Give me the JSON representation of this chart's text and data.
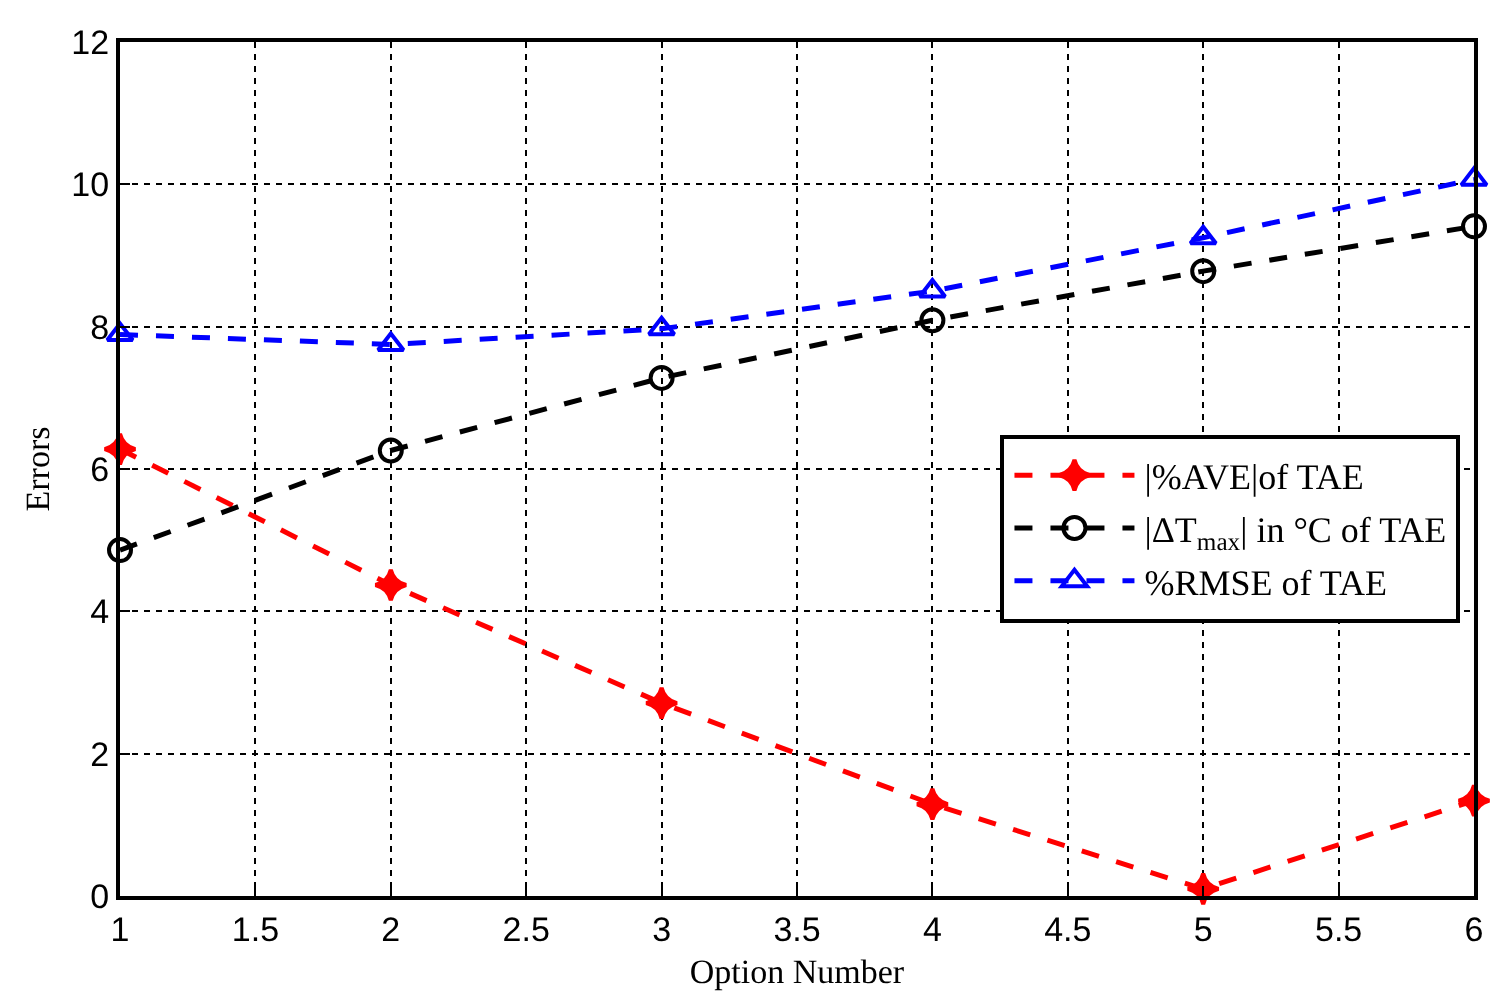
{
  "chart_data": {
    "type": "line",
    "xlabel": "Option Number",
    "ylabel": "Errors",
    "x": [
      1,
      2,
      3,
      4,
      5,
      6
    ],
    "series": [
      {
        "name": "|%AVE|of TAE",
        "color": "#ff0000",
        "marker": "star",
        "values": [
          6.28,
          4.37,
          2.71,
          1.29,
          0.1,
          1.34
        ]
      },
      {
        "name": "|ΔT$_{max}$| in °C of TAE",
        "color": "#000000",
        "marker": "circle",
        "values": [
          4.86,
          6.26,
          7.28,
          8.09,
          8.78,
          9.41
        ]
      },
      {
        "name": "%RMSE of TAE",
        "color": "#0000ff",
        "marker": "triangle",
        "values": [
          7.89,
          7.75,
          7.97,
          8.5,
          9.25,
          10.07
        ]
      }
    ],
    "xlim": [
      1,
      6
    ],
    "xticks": [
      1,
      1.5,
      2,
      2.5,
      3,
      3.5,
      4,
      4.5,
      5,
      5.5,
      6
    ],
    "ylim": [
      0,
      12
    ],
    "yticks": [
      0,
      2,
      4,
      6,
      8,
      10,
      12
    ],
    "grid": true,
    "legend": "right",
    "line_style": "dashed"
  }
}
